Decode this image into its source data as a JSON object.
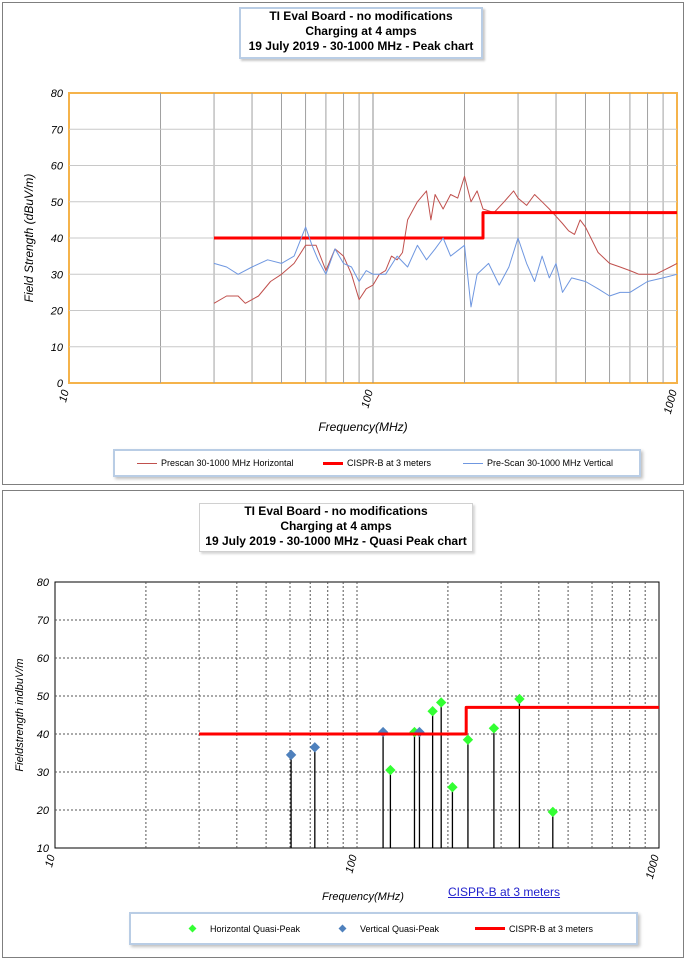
{
  "chart_data": [
    {
      "type": "line",
      "title": [
        "TI Eval Board - no modifications",
        "Charging at 4 amps",
        "19 July 2019 - 30-1000 MHz - Peak chart"
      ],
      "xlabel": "Frequency(MHz)",
      "ylabel": "Field Strength (dBuV/m)",
      "xscale": "log",
      "xlim": [
        10,
        1000
      ],
      "ylim": [
        0,
        80
      ],
      "xticks": [
        10,
        100,
        1000
      ],
      "yticks": [
        0,
        10,
        20,
        30,
        40,
        50,
        60,
        70,
        80
      ],
      "grid": true,
      "legend_position": "bottom",
      "series": [
        {
          "name": "Prescan 30-1000 MHz Horizontal",
          "color": "#c0504d",
          "x": [
            30,
            33,
            36,
            38,
            42,
            46,
            50,
            55,
            60,
            65,
            70,
            75,
            80,
            85,
            90,
            95,
            100,
            105,
            110,
            115,
            120,
            125,
            130,
            140,
            150,
            155,
            160,
            170,
            180,
            190,
            200,
            210,
            220,
            230,
            250,
            270,
            290,
            300,
            320,
            340,
            360,
            380,
            400,
            420,
            440,
            460,
            480,
            500,
            550,
            600,
            650,
            700,
            750,
            800,
            850,
            900,
            950,
            1000
          ],
          "y": [
            22,
            24,
            24,
            22,
            24,
            28,
            30,
            33,
            38,
            38,
            31,
            37,
            35,
            30,
            23,
            26,
            27,
            30,
            31,
            35,
            34,
            36,
            45,
            50,
            53,
            45,
            52,
            48,
            52,
            51,
            57,
            50,
            53,
            48,
            47,
            50,
            53,
            51,
            49,
            52,
            50,
            48,
            46,
            44,
            42,
            41,
            45,
            43,
            36,
            33,
            32,
            31,
            30,
            30,
            30,
            31,
            32,
            33
          ]
        },
        {
          "name": "CISPR-B at  3 meters",
          "color": "#ff0000",
          "x": [
            30,
            230,
            230,
            1000
          ],
          "y": [
            40,
            40,
            47,
            47
          ]
        },
        {
          "name": "Pre-Scan 30-1000 MHz Vertical",
          "color": "#6f97e0",
          "x": [
            30,
            33,
            36,
            40,
            45,
            50,
            55,
            60,
            63,
            66,
            70,
            75,
            80,
            85,
            90,
            95,
            100,
            110,
            120,
            130,
            140,
            150,
            160,
            170,
            180,
            200,
            210,
            220,
            240,
            260,
            280,
            300,
            320,
            340,
            360,
            380,
            400,
            420,
            450,
            500,
            550,
            600,
            650,
            700,
            800,
            900,
            1000
          ],
          "y": [
            33,
            32,
            30,
            32,
            34,
            33,
            35,
            43,
            38,
            34,
            30,
            37,
            33,
            32,
            28,
            31,
            30,
            30,
            35,
            32,
            38,
            34,
            37,
            40,
            35,
            38,
            21,
            30,
            33,
            27,
            32,
            40,
            33,
            28,
            35,
            29,
            33,
            25,
            29,
            28,
            26,
            24,
            25,
            25,
            28,
            29,
            30
          ]
        }
      ]
    },
    {
      "type": "scatter",
      "title": [
        "TI Eval Board  - no modifications",
        "Charging at 4 amps",
        "19 July 2019 - 30-1000 MHz - Quasi Peak chart"
      ],
      "xlabel": "Frequency(MHz)",
      "ylabel": "Fieldstrength indbuV/m",
      "annotation": "CISPR-B at  3 meters",
      "xscale": "log",
      "xlim": [
        10,
        1000
      ],
      "ylim": [
        10,
        80
      ],
      "xticks": [
        10,
        100,
        1000
      ],
      "yticks": [
        10,
        20,
        30,
        40,
        50,
        60,
        70,
        80
      ],
      "grid": true,
      "legend_position": "bottom",
      "series": [
        {
          "name": "Horizontal Quasi-Peak",
          "color": "#33ff33",
          "marker": "diamond",
          "x": [
            129,
            155,
            178,
            190,
            207,
            233,
            284,
            345,
            445
          ],
          "y": [
            30.5,
            40.5,
            46,
            48.3,
            26,
            38.5,
            41.5,
            49.2,
            19.5
          ]
        },
        {
          "name": "Vertical Quasi-Peak",
          "color": "#4f81bd",
          "marker": "diamond",
          "x": [
            60.5,
            72.5,
            122,
            161
          ],
          "y": [
            34.5,
            36.5,
            40.5,
            40.5
          ]
        },
        {
          "name": "CISPR-B at  3 meters",
          "color": "#ff0000",
          "x": [
            30,
            230,
            230,
            1000
          ],
          "y": [
            40,
            40,
            47,
            47
          ]
        }
      ]
    }
  ]
}
